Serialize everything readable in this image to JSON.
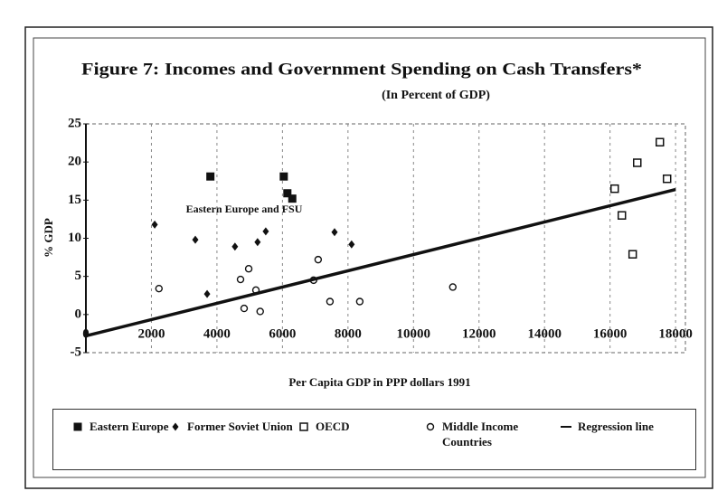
{
  "chart_data": {
    "type": "scatter",
    "title": "Figure 7: Incomes and Government Spending on Cash Transfers*",
    "subtitle": "(In Percent of GDP)",
    "x_label": "Per Capita GDP in PPP dollars 1991",
    "y_label": "% GDP",
    "annotation": "Eastern Europe and FSU",
    "xlim": [
      0,
      18300
    ],
    "ylim": [
      -5,
      25
    ],
    "xticks": [
      0,
      2000,
      4000,
      6000,
      8000,
      10000,
      12000,
      14000,
      16000,
      18000
    ],
    "yticks": [
      -5,
      0,
      5,
      10,
      15,
      20,
      25
    ],
    "grid": true,
    "series": [
      {
        "name": "Eastern Europe",
        "color": "#111111",
        "marker": "square-filled",
        "x": [
          3800,
          6040,
          6150,
          6300
        ],
        "values": [
          18.1,
          18.1,
          15.9,
          15.2
        ]
      },
      {
        "name": "Former Soviet Union",
        "color": "#111111",
        "marker": "diamond",
        "x": [
          2100,
          3340,
          3700,
          4550,
          5240,
          5490,
          7590,
          8110
        ],
        "values": [
          11.8,
          9.8,
          2.7,
          8.9,
          9.5,
          10.9,
          10.8,
          9.2
        ]
      },
      {
        "name": "OECD",
        "color": "#111111",
        "marker": "square-open",
        "x": [
          16140,
          16360,
          16690,
          17520,
          16830,
          17740
        ],
        "values": [
          16.5,
          13.0,
          7.9,
          22.6,
          19.9,
          17.8
        ]
      },
      {
        "name": "Middle Income Countries",
        "color": "#111111",
        "marker": "circle-open",
        "x": [
          2230,
          4720,
          4970,
          5190,
          4830,
          5320,
          7090,
          7450,
          8360,
          11200,
          6950
        ],
        "values": [
          3.4,
          4.6,
          6.0,
          3.2,
          0.8,
          0.4,
          7.2,
          1.7,
          1.7,
          3.6,
          4.5
        ]
      },
      {
        "name": "Regression line",
        "color": "#111111",
        "marker": "line",
        "x": [
          0,
          18000
        ],
        "values": [
          -2.8,
          16.4
        ]
      }
    ]
  }
}
